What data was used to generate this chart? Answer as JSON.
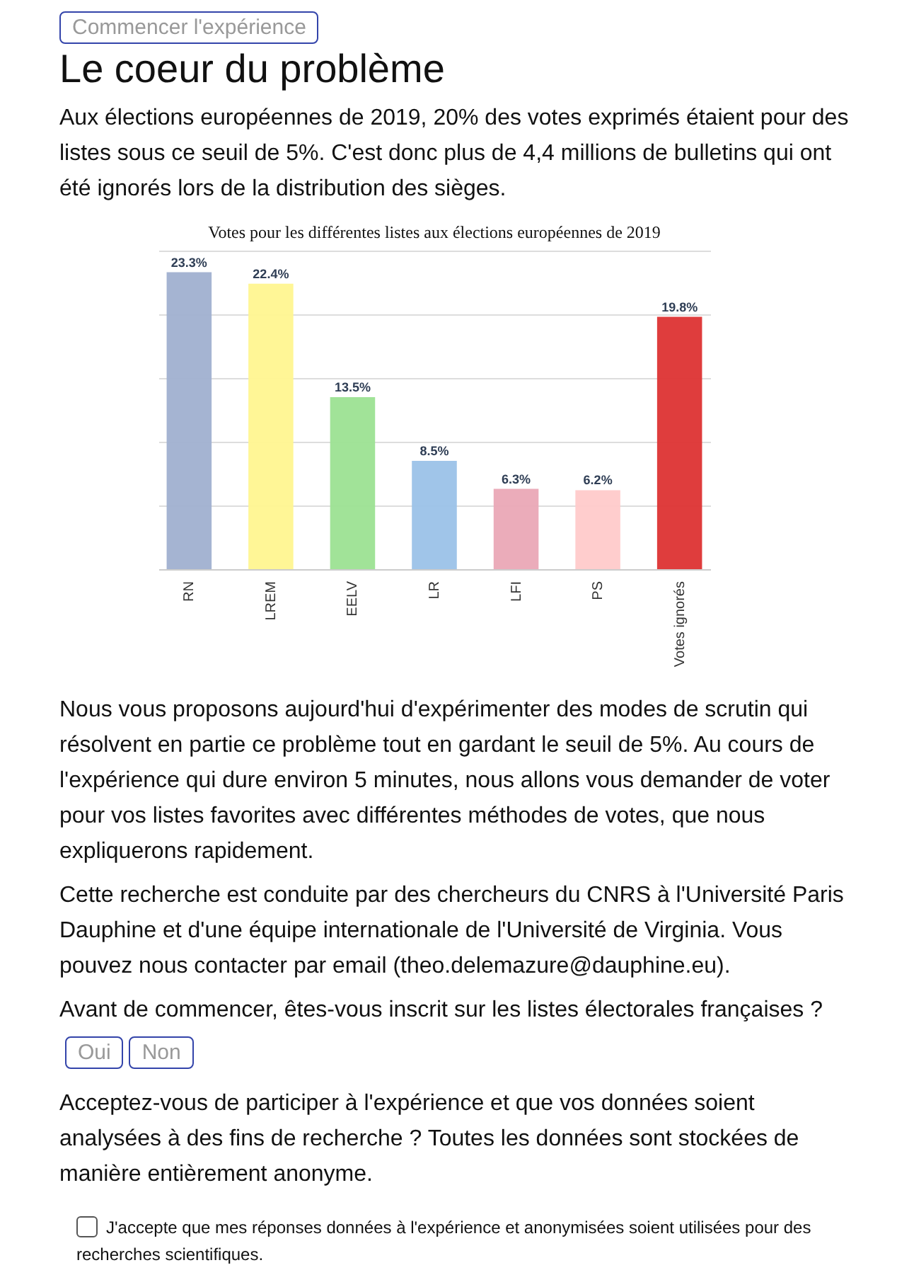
{
  "chart_data": {
    "type": "bar",
    "title": "Votes pour les différentes listes aux élections européennes de 2019",
    "categories": [
      "RN",
      "LREM",
      "EELV",
      "LR",
      "LFI",
      "PS",
      "Votes ignorés"
    ],
    "values": [
      23.3,
      22.4,
      13.5,
      8.5,
      6.3,
      6.2,
      19.8
    ],
    "value_labels": [
      "23.3%",
      "22.4%",
      "13.5%",
      "8.5%",
      "6.3%",
      "6.2%",
      "19.8%"
    ],
    "colors": [
      "#a0b0d0",
      "#fff590",
      "#9ce292",
      "#9bc2e8",
      "#eaa8b6",
      "#ffcaca",
      "#dd3333"
    ],
    "ylim": [
      0,
      25
    ],
    "yticks": [
      0,
      5,
      10,
      15,
      20,
      25
    ],
    "grid": "y",
    "tick_labels": "x",
    "annotations": [
      "Commencer l'expérience",
      "Le coeur du problème",
      "Aux élections européennes de 2019, 20% des votes exprimés étaient pour des listes sous ce seuil de 5%. C'est donc plus de 4,4 millions de bulletins qui ont été ignorés lors de la distribution des sièges.",
      "Nous vous proposons aujourd'hui d'expérimenter des modes de scrutin qui résolvent en partie ce problème tout en gardant le seuil de 5%. Au cours de l'expérience qui dure environ 5 minutes, nous allons vous demander de voter pour vos listes favorites avec différentes méthodes de votes, que nous expliquerons rapidement.",
      "Cette recherche est conduite par des chercheurs du CNRS à l'Université Paris Dauphine et d'une équipe internationale de l'Université de Virginia. Vous pouvez nous contacter par email (theo.delemazure@dauphine.eu).",
      "Avant de commencer, êtes-vous inscrit sur les listes électorales françaises ?",
      "Oui",
      "Non",
      "Acceptez-vous de participer à l'expérience et que vos données soient analysées à des fins de recherche ? Toutes les données sont stockées de manière entièrement anonyme.",
      "J'accepte que mes réponses données à l'expérience et anonymisées soient utilisées pour des recherches scientifiques."
    ]
  }
}
